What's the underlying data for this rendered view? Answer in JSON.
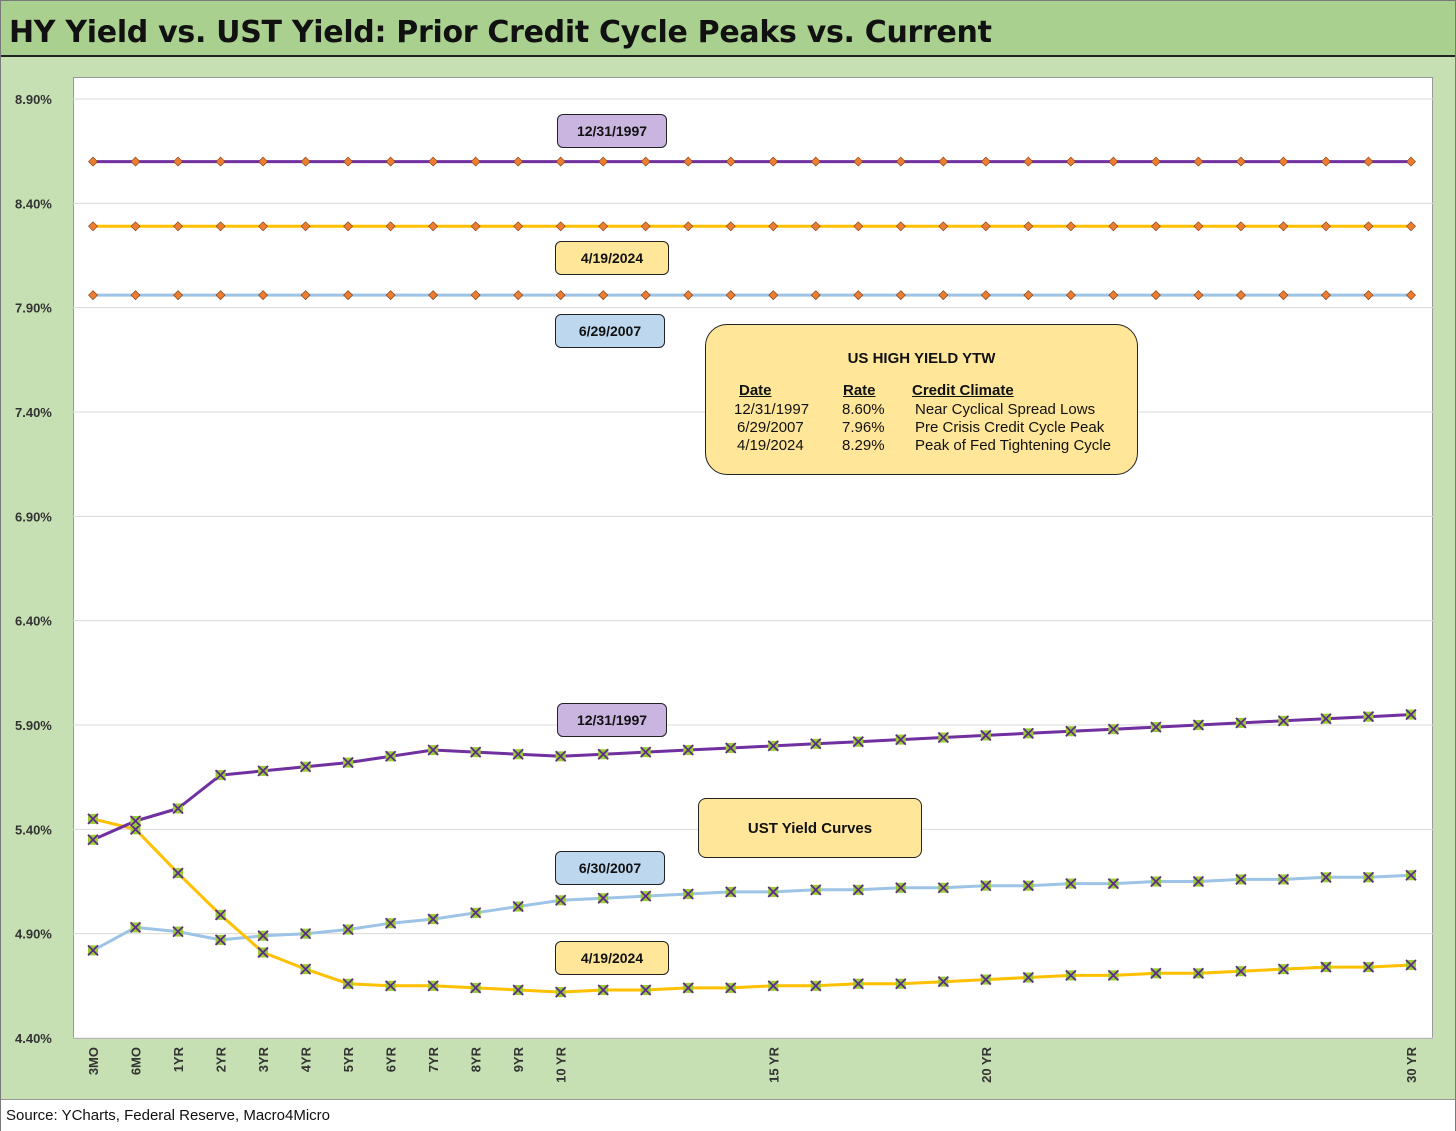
{
  "title": "HY Yield vs. UST Yield: Prior Credit Cycle Peaks vs. Current",
  "source": "Source: YCharts, Federal Reserve, Macro4Micro",
  "labels": {
    "hy_1997": "12/31/1997",
    "hy_2024": "4/19/2024",
    "hy_2007": "6/29/2007",
    "ust_1997": "12/31/1997",
    "ust_2007": "6/30/2007",
    "ust_2024": "4/19/2024",
    "ust_box": "UST Yield Curves"
  },
  "info_box": {
    "title": "US HIGH YIELD YTW",
    "headers": [
      "Date",
      "Rate",
      "Credit Climate"
    ],
    "rows": [
      [
        "12/31/1997",
        "8.60%",
        "Near Cyclical Spread Lows"
      ],
      [
        "6/29/2007",
        "7.96%",
        "Pre Crisis Credit Cycle Peak"
      ],
      [
        "4/19/2024",
        "8.29%",
        "Peak of Fed Tightening Cycle"
      ]
    ]
  },
  "colors": {
    "purple": "#7030a0",
    "gold": "#ffc000",
    "light_blue": "#9dc3e6",
    "marker_orange": "#ed7d31",
    "marker_green": "#9acd32",
    "tag_purple": "#c9b5e0",
    "tag_gold": "#ffe699",
    "tag_blue": "#bdd7ee",
    "frame_green": "#c6e0b4",
    "title_green": "#a9d08e"
  },
  "chart_data": {
    "type": "line",
    "x": [
      "3MO",
      "6MO",
      "1YR",
      "2YR",
      "3YR",
      "4YR",
      "5YR",
      "6YR",
      "7YR",
      "8YR",
      "9YR",
      "10YR",
      "11YR",
      "12YR",
      "13YR",
      "14YR",
      "15YR",
      "16YR",
      "17YR",
      "18YR",
      "19YR",
      "20YR",
      "21YR",
      "22YR",
      "23YR",
      "24YR",
      "25YR",
      "26YR",
      "27YR",
      "28YR",
      "29YR",
      "30YR"
    ],
    "x_tick_labels": [
      "3MO",
      "6MO",
      "1YR",
      "2YR",
      "3YR",
      "4YR",
      "5YR",
      "6YR",
      "7YR",
      "8YR",
      "9YR",
      "10 YR",
      "",
      "",
      "",
      "",
      "15 YR",
      "",
      "",
      "",
      "",
      "20 YR",
      "",
      "",
      "",
      "",
      "",
      "",
      "",
      "",
      "",
      "30 YR"
    ],
    "y_ticks": [
      "8.90%",
      "8.40%",
      "7.90%",
      "7.40%",
      "6.90%",
      "6.40%",
      "5.90%",
      "5.40%",
      "4.90%",
      "4.40%"
    ],
    "ylim": [
      4.4,
      8.95
    ],
    "grid": true,
    "series": [
      {
        "name": "12/31/1997",
        "group": "hy",
        "color": "#7030a0",
        "marker": "diamond",
        "values": [
          8.6,
          8.6,
          8.6,
          8.6,
          8.6,
          8.6,
          8.6,
          8.6,
          8.6,
          8.6,
          8.6,
          8.6,
          8.6,
          8.6,
          8.6,
          8.6,
          8.6,
          8.6,
          8.6,
          8.6,
          8.6,
          8.6,
          8.6,
          8.6,
          8.6,
          8.6,
          8.6,
          8.6,
          8.6,
          8.6,
          8.6,
          8.6
        ]
      },
      {
        "name": "4/19/2024",
        "group": "hy",
        "color": "#ffc000",
        "marker": "diamond",
        "values": [
          8.29,
          8.29,
          8.29,
          8.29,
          8.29,
          8.29,
          8.29,
          8.29,
          8.29,
          8.29,
          8.29,
          8.29,
          8.29,
          8.29,
          8.29,
          8.29,
          8.29,
          8.29,
          8.29,
          8.29,
          8.29,
          8.29,
          8.29,
          8.29,
          8.29,
          8.29,
          8.29,
          8.29,
          8.29,
          8.29,
          8.29,
          8.29
        ]
      },
      {
        "name": "6/29/2007",
        "group": "hy",
        "color": "#9dc3e6",
        "marker": "diamond",
        "values": [
          7.96,
          7.96,
          7.96,
          7.96,
          7.96,
          7.96,
          7.96,
          7.96,
          7.96,
          7.96,
          7.96,
          7.96,
          7.96,
          7.96,
          7.96,
          7.96,
          7.96,
          7.96,
          7.96,
          7.96,
          7.96,
          7.96,
          7.96,
          7.96,
          7.96,
          7.96,
          7.96,
          7.96,
          7.96,
          7.96,
          7.96,
          7.96
        ]
      },
      {
        "name": "12/31/1997",
        "group": "ust",
        "color": "#7030a0",
        "marker": "x",
        "values": [
          5.35,
          5.44,
          5.5,
          5.66,
          5.68,
          5.7,
          5.72,
          5.75,
          5.78,
          5.77,
          5.76,
          5.75,
          5.76,
          5.77,
          5.78,
          5.79,
          5.8,
          5.81,
          5.82,
          5.83,
          5.84,
          5.85,
          5.86,
          5.87,
          5.88,
          5.89,
          5.9,
          5.91,
          5.92,
          5.93,
          5.94,
          5.95
        ]
      },
      {
        "name": "6/30/2007",
        "group": "ust",
        "color": "#9dc3e6",
        "marker": "x",
        "values": [
          4.82,
          4.93,
          4.91,
          4.87,
          4.89,
          4.9,
          4.92,
          4.95,
          4.97,
          5.0,
          5.03,
          5.06,
          5.07,
          5.08,
          5.09,
          5.1,
          5.1,
          5.11,
          5.11,
          5.12,
          5.12,
          5.13,
          5.13,
          5.14,
          5.14,
          5.15,
          5.15,
          5.16,
          5.16,
          5.17,
          5.17,
          5.18
        ]
      },
      {
        "name": "4/19/2024",
        "group": "ust",
        "color": "#ffc000",
        "marker": "x",
        "values": [
          5.45,
          5.4,
          5.19,
          4.99,
          4.81,
          4.73,
          4.66,
          4.65,
          4.65,
          4.64,
          4.63,
          4.62,
          4.63,
          4.63,
          4.64,
          4.64,
          4.65,
          4.65,
          4.66,
          4.66,
          4.67,
          4.68,
          4.69,
          4.7,
          4.7,
          4.71,
          4.71,
          4.72,
          4.73,
          4.74,
          4.74,
          4.75
        ]
      }
    ]
  }
}
